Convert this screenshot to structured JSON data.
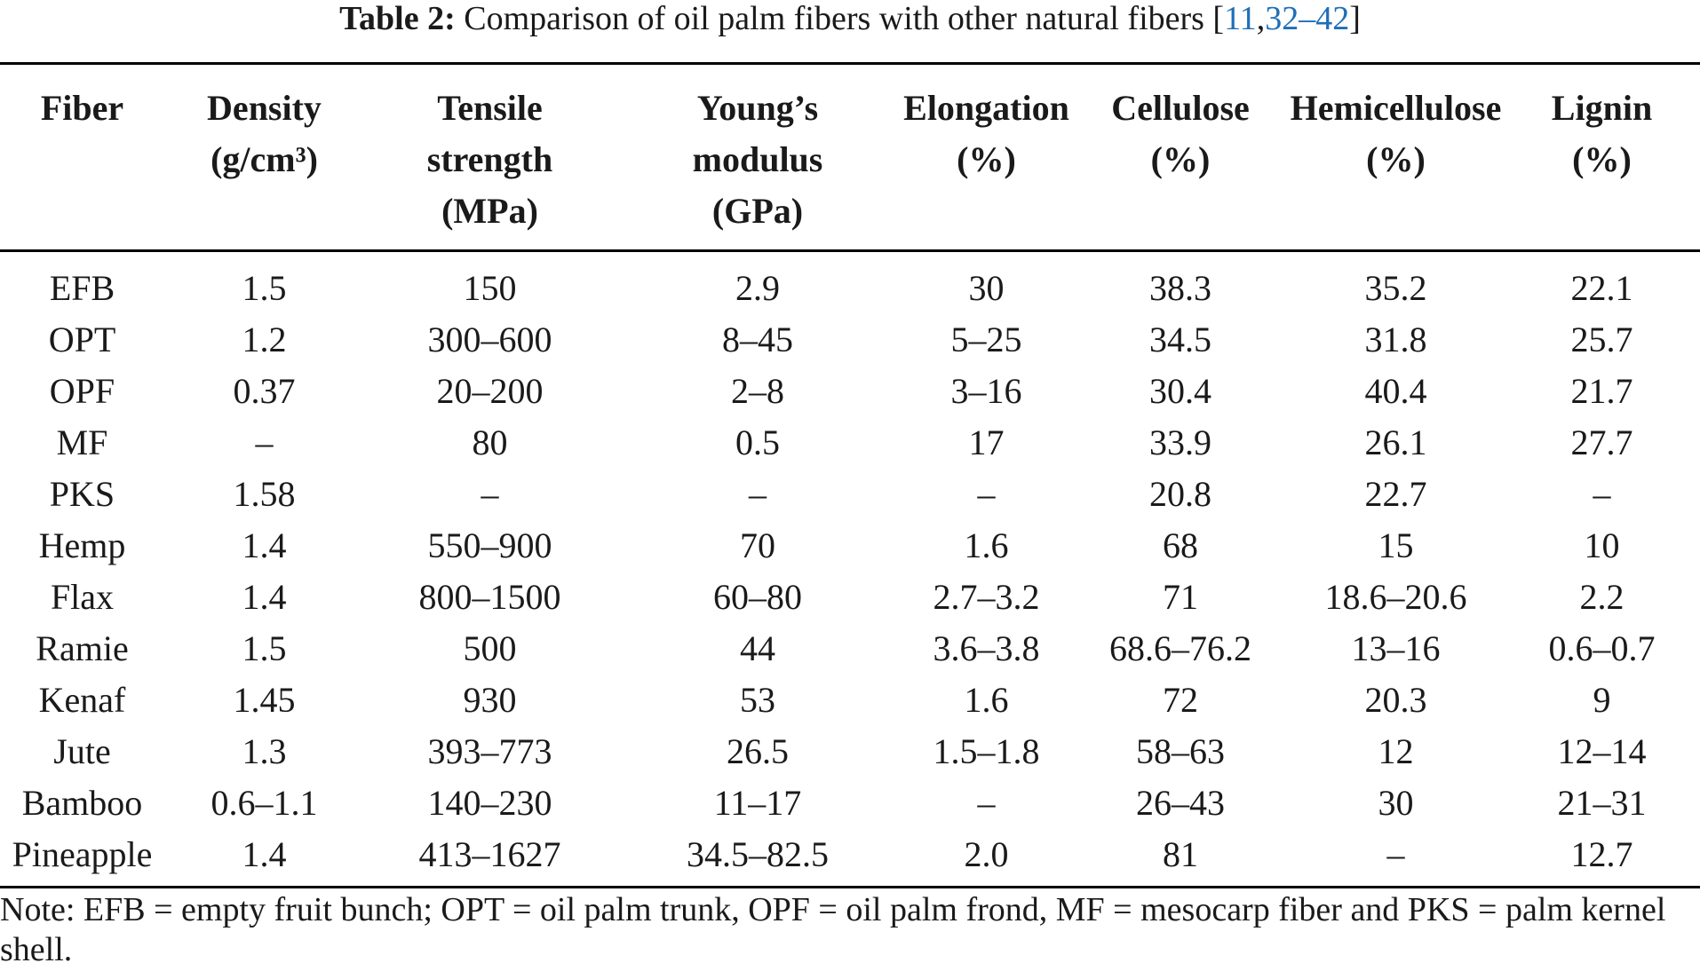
{
  "caption": {
    "label": "Table 2:",
    "text": "Comparison of oil palm fibers with other natural fibers [",
    "ref1": "11",
    "sep1": ",",
    "ref2": "32",
    "sep2": "–",
    "ref3": "42",
    "close": "]"
  },
  "table": {
    "headers": [
      [
        "Fiber"
      ],
      [
        "Density",
        "(g/cm³)"
      ],
      [
        "Tensile",
        "strength",
        "(MPa)"
      ],
      [
        "Young’s",
        "modulus",
        "(GPa)"
      ],
      [
        "Elongation",
        "(%)"
      ],
      [
        "Cellulose",
        "(%)"
      ],
      [
        "Hemicellulose",
        "(%)"
      ],
      [
        "Lignin",
        "(%)"
      ]
    ],
    "rows": [
      [
        "EFB",
        "1.5",
        "150",
        "2.9",
        "30",
        "38.3",
        "35.2",
        "22.1"
      ],
      [
        "OPT",
        "1.2",
        "300–600",
        "8–45",
        "5–25",
        "34.5",
        "31.8",
        "25.7"
      ],
      [
        "OPF",
        "0.37",
        "20–200",
        "2–8",
        "3–16",
        "30.4",
        "40.4",
        "21.7"
      ],
      [
        "MF",
        "–",
        "80",
        "0.5",
        "17",
        "33.9",
        "26.1",
        "27.7"
      ],
      [
        "PKS",
        "1.58",
        "–",
        "–",
        "–",
        "20.8",
        "22.7",
        "–"
      ],
      [
        "Hemp",
        "1.4",
        "550–900",
        "70",
        "1.6",
        "68",
        "15",
        "10"
      ],
      [
        "Flax",
        "1.4",
        "800–1500",
        "60–80",
        "2.7–3.2",
        "71",
        "18.6–20.6",
        "2.2"
      ],
      [
        "Ramie",
        "1.5",
        "500",
        "44",
        "3.6–3.8",
        "68.6–76.2",
        "13–16",
        "0.6–0.7"
      ],
      [
        "Kenaf",
        "1.45",
        "930",
        "53",
        "1.6",
        "72",
        "20.3",
        "9"
      ],
      [
        "Jute",
        "1.3",
        "393–773",
        "26.5",
        "1.5–1.8",
        "58–63",
        "12",
        "12–14"
      ],
      [
        "Bamboo",
        "0.6–1.1",
        "140–230",
        "11–17",
        "–",
        "26–43",
        "30",
        "21–31"
      ],
      [
        "Pineapple",
        "1.4",
        "413–1627",
        "34.5–82.5",
        "2.0",
        "81",
        "–",
        "12.7"
      ]
    ]
  },
  "note": "Note: EFB = empty fruit bunch; OPT = oil palm trunk, OPF = oil palm frond, MF = mesocarp fiber and PKS = palm kernel shell."
}
